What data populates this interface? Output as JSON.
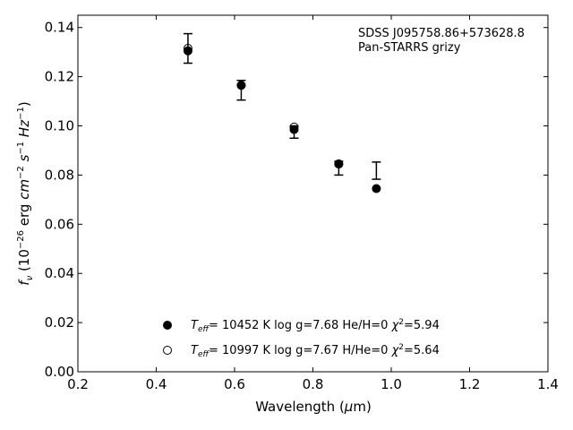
{
  "chart_data": {
    "type": "scatter",
    "title": "",
    "xlabel": "Wavelength (μm)",
    "ylabel": "f_ν (10^-26 erg cm^-2 s^-1 Hz^-1)",
    "xlim": [
      0.2,
      1.4
    ],
    "ylim": [
      0.0,
      0.145
    ],
    "x_ticks": [
      "0.2",
      "0.4",
      "0.6",
      "0.8",
      "1.0",
      "1.2",
      "1.4"
    ],
    "y_ticks": [
      "0.00",
      "0.02",
      "0.04",
      "0.06",
      "0.08",
      "0.10",
      "0.12",
      "0.14"
    ],
    "grid": false,
    "legend_position": "lower-center",
    "annotations": [
      "SDSS J095758.86+573628.8",
      "Pan-STARRS grizy"
    ],
    "observed": {
      "x": [
        0.481,
        0.617,
        0.752,
        0.866,
        0.962
      ],
      "y": [
        0.1315,
        0.1145,
        0.0975,
        0.0828,
        0.0818
      ],
      "yerr": [
        0.006,
        0.004,
        0.0025,
        0.0028,
        0.0035
      ]
    },
    "series": [
      {
        "name": "T_eff= 10452 K  log g=7.68  He/H=0  χ²=5.94",
        "marker": "filled-circle",
        "x": [
          0.481,
          0.617,
          0.752,
          0.866,
          0.962
        ],
        "y": [
          0.1305,
          0.1165,
          0.0985,
          0.0845,
          0.0745
        ]
      },
      {
        "name": "T_eff= 10997 K  log g=7.67  H/He=0  χ²=5.64",
        "marker": "open-circle",
        "x": [
          0.481,
          0.617,
          0.752,
          0.866
        ],
        "y": [
          0.1315,
          0.1165,
          0.0995,
          0.0845
        ]
      }
    ]
  }
}
